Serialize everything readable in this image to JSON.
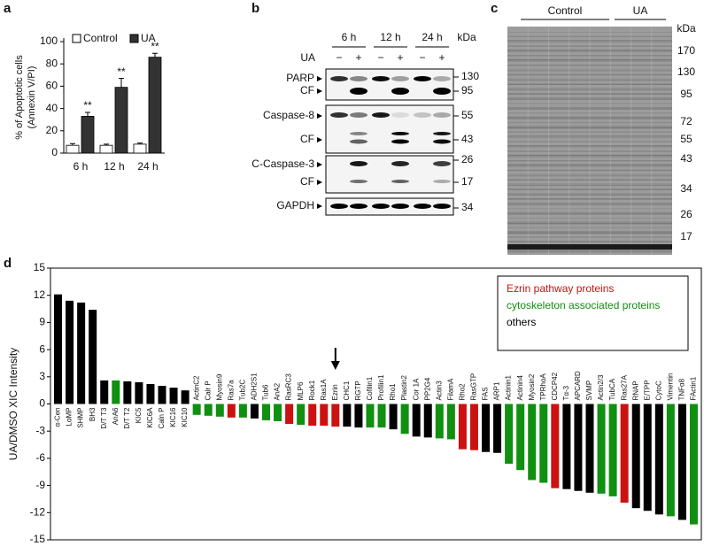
{
  "chart_data": [
    {
      "type": "bar",
      "label": "a",
      "y_label": [
        "% of Apoptotic cells",
        "(Annexin V/PI)"
      ],
      "categories": [
        "6 h",
        "12 h",
        "24 h"
      ],
      "series": [
        {
          "name": "Control",
          "color": "#ffffff",
          "values": [
            7,
            7,
            8
          ],
          "errors": [
            1.5,
            1,
            1
          ]
        },
        {
          "name": "UA",
          "color": "#333333",
          "values": [
            33,
            59,
            86
          ],
          "errors": [
            3.5,
            8,
            3.5
          ]
        }
      ],
      "annotations": [
        "**",
        "**",
        "**"
      ],
      "ylim": [
        0,
        100
      ],
      "yticks": [
        0,
        20,
        40,
        60,
        80,
        100
      ]
    },
    {
      "type": "bar",
      "label": "d",
      "y_label": "UA/DMSO XIC Intensity",
      "categories": [
        "α-Cen",
        "LαMP",
        "SHMP",
        "BH3",
        "D/T T3",
        "AnA6",
        "D/T T2",
        "KIC5",
        "KIC6A",
        "Caln P",
        "KIC16",
        "KIC10",
        "ActinC2",
        "Calr P",
        "Myosin9",
        "Ras7a",
        "Tub2C",
        "ADH2S1",
        "Tub6",
        "AnA2",
        "RasRC3",
        "MLP6",
        "Rock1",
        "Ras1A",
        "Ezrin",
        "CHC1",
        "RGTP",
        "Cofilin1",
        "Profilin1",
        "Rho1",
        "Plastin2",
        "Cor 1A",
        "PP2G4",
        "Actin3",
        "FilamA",
        "Rho2",
        "RasGTP",
        "FAS",
        "ARP1",
        "Actinin1",
        "Actinin4",
        "Myosin2",
        "TPRhoA",
        "CDCP42",
        "Tα-3",
        "APCARD",
        "SVMP",
        "Actin2/3",
        "TubCA",
        "Ras27A",
        "RNAP",
        "E/TPP",
        "CytoC",
        "Vimentin",
        "TNFα8",
        "FActin1"
      ],
      "values": [
        12.1,
        11.4,
        11.2,
        10.4,
        2.6,
        2.6,
        2.5,
        2.4,
        2.2,
        2.0,
        1.8,
        1.5,
        -1.2,
        -1.3,
        -1.4,
        -1.5,
        -1.5,
        -1.6,
        -1.8,
        -1.9,
        -2.2,
        -2.3,
        -2.4,
        -2.4,
        -2.5,
        -2.5,
        -2.6,
        -2.6,
        -2.6,
        -2.8,
        -3.3,
        -3.6,
        -3.7,
        -3.8,
        -3.9,
        -5.0,
        -5.1,
        -5.3,
        -5.4,
        -6.6,
        -7.3,
        -8.4,
        -8.7,
        -9.3,
        -9.4,
        -9.6,
        -9.8,
        -9.9,
        -10.2,
        -10.9,
        -11.5,
        -11.8,
        -12.2,
        -12.4,
        -12.8,
        -13.3
      ],
      "group": [
        2,
        2,
        2,
        2,
        2,
        1,
        2,
        2,
        2,
        2,
        2,
        2,
        1,
        1,
        1,
        0,
        1,
        2,
        1,
        1,
        0,
        1,
        0,
        0,
        0,
        2,
        2,
        1,
        1,
        2,
        1,
        2,
        2,
        1,
        1,
        0,
        0,
        2,
        2,
        1,
        1,
        1,
        1,
        0,
        2,
        2,
        2,
        1,
        1,
        0,
        2,
        2,
        2,
        1,
        2,
        1
      ],
      "groups": [
        {
          "name": "Ezrin pathway proteins",
          "color": "#cc1111"
        },
        {
          "name": "cytoskeleton associated proteins",
          "color": "#109010"
        },
        {
          "name": "others",
          "color": "#000000"
        }
      ],
      "ylim": [
        -15,
        15
      ],
      "yticks": [
        -15,
        -12,
        -9,
        -6,
        -3,
        0,
        3,
        6,
        9,
        12,
        15
      ]
    }
  ],
  "blot": {
    "label": "b",
    "times": [
      "6 h",
      "12 h",
      "24 h"
    ],
    "treatment": "UA",
    "signs": [
      "−",
      "+",
      "−",
      "+",
      "−",
      "+"
    ],
    "unit": "kDa",
    "rows": [
      {
        "name": "PARP",
        "size": 130
      },
      {
        "name": "CF",
        "size": 95
      },
      {
        "name": "Caspase-8",
        "size": 55
      },
      {
        "name": "CF",
        "size": 43
      },
      {
        "name": "C-Caspase-3",
        "size": 26
      },
      {
        "name": "CF",
        "size": 17
      },
      {
        "name": "GAPDH",
        "size": 34
      }
    ]
  },
  "gel": {
    "label": "c",
    "groups": [
      "Control",
      "UA"
    ],
    "unit": "kDa",
    "markers": [
      170,
      130,
      95,
      72,
      55,
      43,
      34,
      26,
      17
    ]
  }
}
